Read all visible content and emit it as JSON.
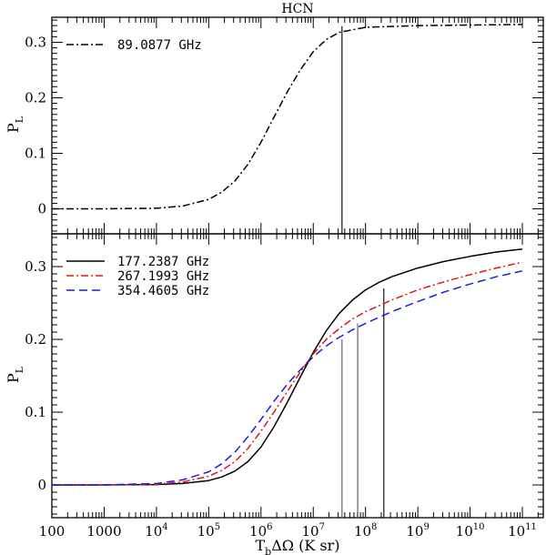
{
  "chart_data": [
    {
      "type": "line",
      "title": "HCN",
      "xlabel": "",
      "ylabel": "P",
      "ylabel_sub": "L",
      "xscale": "log",
      "xlim_log10": [
        2,
        11.4
      ],
      "ylim": [
        -0.045,
        0.345
      ],
      "yticks": [
        "0",
        "0.1",
        "0.2",
        "0.3"
      ],
      "legend_position": "top-left",
      "series": [
        {
          "name": "89.0877 GHz",
          "style": "dash-dot",
          "color": "#000000",
          "x_log10": [
            2,
            3,
            4,
            4.5,
            5,
            5.25,
            5.5,
            5.75,
            6,
            6.25,
            6.5,
            6.75,
            7,
            7.25,
            7.5,
            8,
            9,
            10,
            11
          ],
          "y": [
            0,
            0,
            0.001,
            0.005,
            0.017,
            0.03,
            0.05,
            0.08,
            0.12,
            0.165,
            0.21,
            0.25,
            0.283,
            0.305,
            0.318,
            0.327,
            0.33,
            0.331,
            0.332
          ]
        }
      ],
      "markers": [
        {
          "x_log10": 7.55,
          "y": 0.329,
          "color": "#000000"
        }
      ]
    },
    {
      "type": "line",
      "title": "",
      "xlabel": "T",
      "xlabel_sub": "b",
      "xlabel_rest": "ΔΩ (K sr)",
      "ylabel": "P",
      "ylabel_sub": "L",
      "xscale": "log",
      "xlim_log10": [
        2,
        11.4
      ],
      "ylim": [
        -0.045,
        0.345
      ],
      "yticks": [
        "0",
        "0.1",
        "0.2",
        "0.3"
      ],
      "xticks": [
        {
          "v": 2,
          "base": "100",
          "exp": ""
        },
        {
          "v": 3,
          "base": "1000",
          "exp": ""
        },
        {
          "v": 4,
          "base": "10",
          "exp": "4"
        },
        {
          "v": 5,
          "base": "10",
          "exp": "5"
        },
        {
          "v": 6,
          "base": "10",
          "exp": "6"
        },
        {
          "v": 7,
          "base": "10",
          "exp": "7"
        },
        {
          "v": 8,
          "base": "10",
          "exp": "8"
        },
        {
          "v": 9,
          "base": "10",
          "exp": "9"
        },
        {
          "v": 10,
          "base": "10",
          "exp": "10"
        },
        {
          "v": 11,
          "base": "10",
          "exp": "11"
        }
      ],
      "legend_position": "top-left",
      "series": [
        {
          "name": "177.2387 GHz",
          "style": "solid",
          "color": "#000000",
          "x_log10": [
            2,
            3,
            4,
            4.5,
            5,
            5.25,
            5.5,
            5.75,
            6,
            6.25,
            6.5,
            6.75,
            7,
            7.25,
            7.5,
            7.75,
            8,
            8.25,
            8.5,
            9,
            9.5,
            10,
            10.5,
            11
          ],
          "y": [
            0,
            0,
            0.0005,
            0.002,
            0.006,
            0.011,
            0.019,
            0.032,
            0.052,
            0.08,
            0.113,
            0.148,
            0.182,
            0.212,
            0.236,
            0.254,
            0.268,
            0.278,
            0.286,
            0.298,
            0.307,
            0.314,
            0.32,
            0.324
          ]
        },
        {
          "name": "267.1993 GHz",
          "style": "dash-dot",
          "color": "#e0161b",
          "x_log10": [
            2,
            3,
            4,
            4.5,
            5,
            5.25,
            5.5,
            5.75,
            6,
            6.25,
            6.5,
            6.75,
            7,
            7.25,
            7.5,
            7.75,
            8,
            8.25,
            8.5,
            9,
            9.5,
            10,
            10.5,
            11
          ],
          "y": [
            0,
            0,
            0.001,
            0.004,
            0.012,
            0.02,
            0.032,
            0.05,
            0.074,
            0.1,
            0.128,
            0.155,
            0.18,
            0.2,
            0.215,
            0.228,
            0.238,
            0.246,
            0.254,
            0.268,
            0.279,
            0.289,
            0.298,
            0.306
          ]
        },
        {
          "name": "354.4605 GHz",
          "style": "dashed",
          "color": "#1521d8",
          "x_log10": [
            2,
            3,
            4,
            4.5,
            5,
            5.25,
            5.5,
            5.75,
            6,
            6.25,
            6.5,
            6.75,
            7,
            7.25,
            7.5,
            7.75,
            8,
            8.25,
            8.5,
            9,
            9.5,
            10,
            10.5,
            11
          ],
          "y": [
            0,
            0,
            0.002,
            0.007,
            0.018,
            0.029,
            0.045,
            0.066,
            0.09,
            0.115,
            0.138,
            0.158,
            0.176,
            0.191,
            0.203,
            0.213,
            0.222,
            0.23,
            0.238,
            0.252,
            0.265,
            0.276,
            0.286,
            0.294
          ]
        }
      ],
      "markers": [
        {
          "x_log10": 7.55,
          "y": 0.2,
          "color": "#555555"
        },
        {
          "x_log10": 7.85,
          "y": 0.222,
          "color": "#555555"
        },
        {
          "x_log10": 8.35,
          "y": 0.27,
          "color": "#000000"
        }
      ]
    }
  ]
}
